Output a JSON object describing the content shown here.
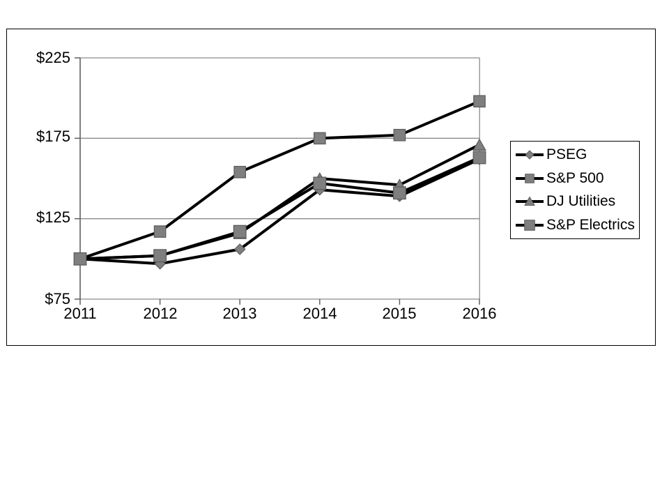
{
  "chart_data": {
    "type": "line",
    "title": "",
    "categories": [
      "2011",
      "2012",
      "2013",
      "2014",
      "2015",
      "2016"
    ],
    "series": [
      {
        "name": "PSEG",
        "marker": "diamond",
        "values": [
          100,
          97,
          106,
          143,
          139,
          162
        ]
      },
      {
        "name": "S&P 500",
        "marker": "square",
        "values": [
          100,
          117,
          154,
          175,
          177,
          198
        ]
      },
      {
        "name": "DJ Utilities",
        "marker": "triangle",
        "values": [
          100,
          102,
          116,
          150,
          146,
          171
        ]
      },
      {
        "name": "S&P Electrics",
        "marker": "square",
        "values": [
          100,
          102,
          117,
          147,
          141,
          163
        ]
      }
    ],
    "xlabel": "",
    "ylabel": "",
    "ylim": [
      75,
      225
    ],
    "yticks": [
      225,
      175,
      125,
      75
    ],
    "yticklabels": [
      "$225",
      "$175",
      "$125",
      "$75"
    ],
    "grid": true,
    "legend_position": "right",
    "colors": {
      "line": "#000000",
      "marker_fill": "#7f7f7f",
      "marker_stroke": "#5a5a5a",
      "grid": "#8a8a8a",
      "axis": "#5f5f5f",
      "text": "#000000"
    }
  }
}
